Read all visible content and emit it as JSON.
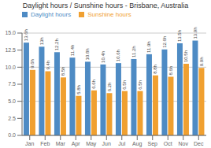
{
  "chart_data": {
    "type": "bar",
    "title": "Daylight hours / Sunshine hours - Brisbane, Australia",
    "categories": [
      "Jan",
      "Feb",
      "Mar",
      "Apr",
      "May",
      "Jun",
      "Jul",
      "Aug",
      "Sep",
      "Oct",
      "Nov",
      "Dec"
    ],
    "series": [
      {
        "name": "Daylight hours",
        "color": "#4e8bc4",
        "values": [
          13.6,
          13.0,
          12.2,
          11.4,
          10.8,
          10.4,
          10.6,
          11.2,
          11.9,
          12.6,
          13.5,
          13.9
        ],
        "value_labels": [
          "13.6h",
          "13h",
          "12.2h",
          "11.4h",
          "10.8h",
          "10.4h",
          "10.6h",
          "11.2h",
          "11.9h",
          "12.6h",
          "13.5h",
          "13.9h"
        ]
      },
      {
        "name": "Sunshine hours",
        "color": "#f0a030",
        "values": [
          9.6,
          9.4,
          8.5,
          5.8,
          6.6,
          6.2,
          6.5,
          6.5,
          8.8,
          8.6,
          10.5,
          9.9
        ],
        "value_labels": [
          "9.6h",
          "9.4h",
          "8.5h",
          "5.8h",
          "6.6h",
          "6.2h",
          "6.5h",
          "6.5h",
          "8.8h",
          "8.6h",
          "10.5h",
          "9.9h"
        ]
      }
    ],
    "ylim": [
      0,
      15.0
    ],
    "yticks": [
      {
        "value": 0.0,
        "label": "0.0"
      },
      2.5,
      {
        "value": 5.0,
        "label": "5.0"
      },
      7.5,
      {
        "value": 10.0,
        "label": "10.0"
      },
      12.5,
      {
        "value": 15.0,
        "label": "15.0"
      }
    ],
    "grid": true,
    "legend": "upper left",
    "data_labels": true
  }
}
